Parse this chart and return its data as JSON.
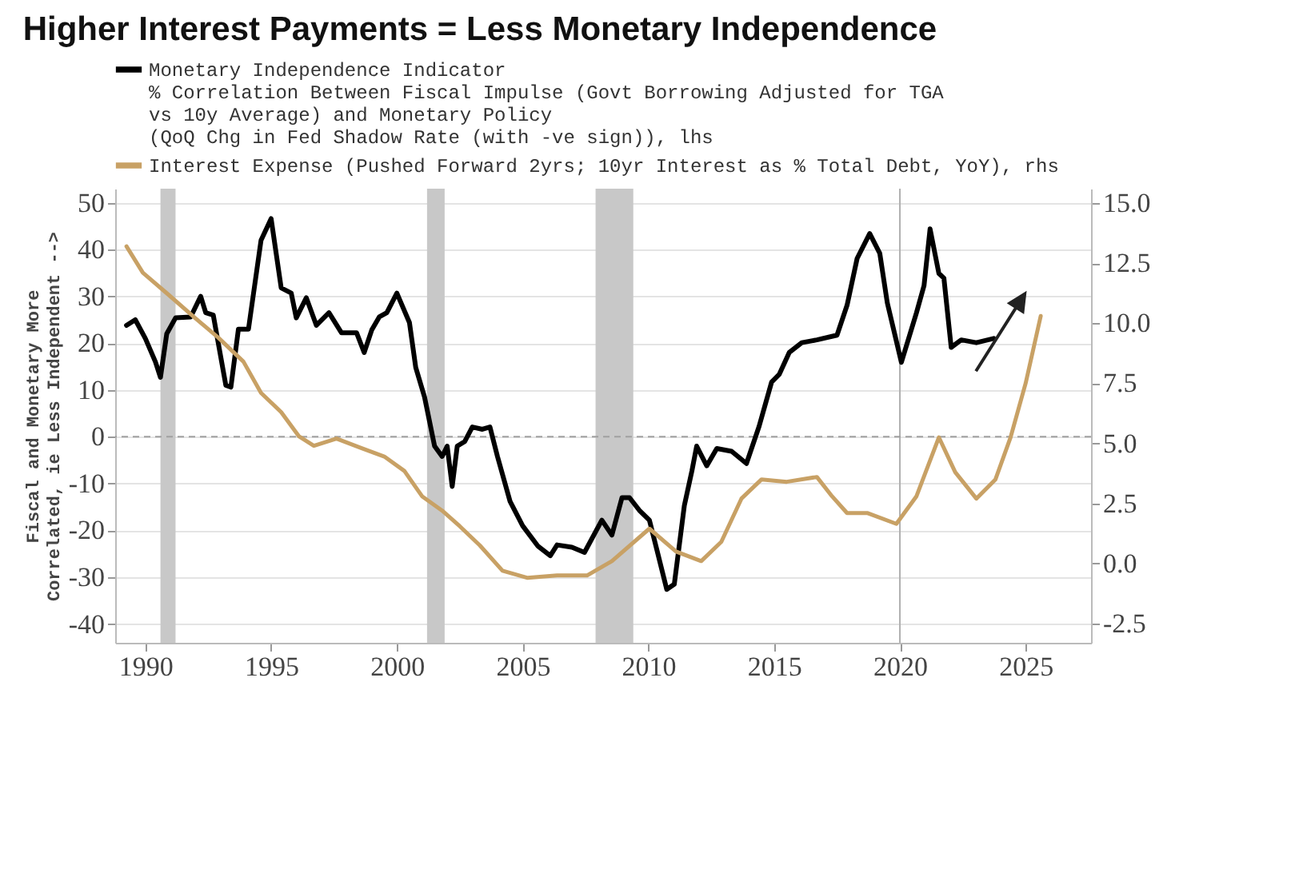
{
  "chart_data": {
    "type": "line",
    "title": "Higher Interest Payments = Less Monetary Independence",
    "ylabel": "Fiscal and Monetary More\nCorrelated, ie Less Independent -->",
    "xlim": [
      1988.8,
      2027.6
    ],
    "xticks": [
      1990,
      1995,
      2000,
      2005,
      2010,
      2015,
      2020,
      2025
    ],
    "ylim": [
      -44,
      53
    ],
    "yticks": [
      -40,
      -30,
      -20,
      -10,
      0,
      10,
      20,
      30,
      40,
      50
    ],
    "y2lim": [
      -3.3,
      15.6
    ],
    "y2ticks": [
      {
        "value": -2.5,
        "label": "-2.5"
      },
      {
        "value": 0,
        "label": "0.0"
      },
      {
        "value": 2.5,
        "label": "2.5"
      },
      {
        "value": 5,
        "label": "5.0"
      },
      {
        "value": 7.5,
        "label": "7.5"
      },
      {
        "value": 10,
        "label": "10.0"
      },
      {
        "value": 12.5,
        "label": "12.5"
      },
      {
        "value": 15,
        "label": "15.0"
      }
    ],
    "grid": "y",
    "legend": "top",
    "line_style": "solid",
    "marker": "none",
    "ref_lines": [
      {
        "axis": "x",
        "value": 2020,
        "color": "#b0b0b0",
        "line_style": "solid"
      },
      {
        "axis": "y",
        "value": 0,
        "color": "#a0a0a0",
        "line_style": "dashed"
      }
    ],
    "bands": [
      {
        "axis": "x",
        "from": 1990.6,
        "to": 1991.2,
        "color": "#c8c8c8"
      },
      {
        "axis": "x",
        "from": 2001.2,
        "to": 2001.9,
        "color": "#c8c8c8"
      },
      {
        "axis": "x",
        "from": 2007.9,
        "to": 2009.4,
        "color": "#c8c8c8"
      }
    ],
    "series": [
      {
        "name": "Monetary Independence Indicator\n% Correlation Between Fiscal Impulse (Govt Borrowing Adjusted for TGA\nvs 10y Average) and Monetary Policy\n(QoQ Chg in Fed Shadow Rate (with -ve sign)), lhs",
        "color": "#000000",
        "x": [
          1989.25,
          1989.6,
          1990,
          1990.4,
          1990.6,
          1990.85,
          1991.2,
          1991.8,
          1992.2,
          1992.4,
          1992.7,
          1993.2,
          1993.4,
          1993.7,
          1994.1,
          1994.6,
          1995,
          1995.4,
          1995.8,
          1996,
          1996.4,
          1996.8,
          1997.3,
          1997.8,
          1998.4,
          1998.7,
          1999,
          1999.3,
          1999.6,
          2000,
          2000.5,
          2000.75,
          2001.1,
          2001.5,
          2001.8,
          2002,
          2002.2,
          2002.4,
          2002.7,
          2003,
          2003.4,
          2003.7,
          2004,
          2004.5,
          2005,
          2005.6,
          2006.1,
          2006.37,
          2006.96,
          2007.46,
          2008.15,
          2008.55,
          2008.95,
          2009.25,
          2009.64,
          2010.04,
          2010.34,
          2010.73,
          2011.03,
          2011.43,
          2011.73,
          2011.92,
          2012.32,
          2012.72,
          2013.31,
          2013.9,
          2014.4,
          2014.9,
          2015.2,
          2015.6,
          2016.1,
          2016.7,
          2017.5,
          2017.9,
          2018.3,
          2018.8,
          2019.2,
          2019.5,
          2020.06,
          2020.66,
          2020.96,
          2021.2,
          2021.55,
          2021.75,
          2022.04,
          2022.44,
          2023.04,
          2023.73
        ],
        "values": [
          23.8,
          25,
          21,
          16,
          12.7,
          22,
          25.4,
          25.6,
          30,
          26.5,
          26,
          11,
          10.6,
          23,
          23,
          42,
          46.6,
          31.8,
          30.7,
          25.4,
          29.7,
          23.8,
          26.5,
          22.2,
          22.2,
          18,
          22.8,
          25.6,
          26.5,
          30.7,
          24.4,
          14.8,
          8.5,
          -2,
          -4.2,
          -2,
          -10.6,
          -2,
          -1,
          2.1,
          1.6,
          2.1,
          -4.2,
          -13.8,
          -19,
          -23.3,
          -25.4,
          -23.1,
          -23.6,
          -24.7,
          -17.8,
          -21,
          -13,
          -13,
          -15.7,
          -17.8,
          -24.2,
          -32.6,
          -31.5,
          -14.7,
          -7.3,
          -2,
          -6.2,
          -2.5,
          -3.1,
          -5.7,
          2.2,
          11.7,
          13.3,
          18,
          20.1,
          20.7,
          21.7,
          28.1,
          38.1,
          43.4,
          39.2,
          28.6,
          15.9,
          26.5,
          32.3,
          44.4,
          34.9,
          33.9,
          19.1,
          20.7,
          20.1,
          21
        ]
      },
      {
        "name": "Interest Expense (Pushed Forward 2yrs; 10yr Interest as % Total Debt, YoY), rhs",
        "color": "#c8a165",
        "axis": "y2",
        "x": [
          1989.25,
          1989.9,
          1990.85,
          1992,
          1992.9,
          1993.9,
          1994.6,
          1995.4,
          1996.1,
          1996.7,
          1997.6,
          1998.6,
          1999.5,
          2000.3,
          2001,
          2001.8,
          2002.5,
          2003.3,
          2004.2,
          2005.2,
          2006.37,
          2007.56,
          2008.55,
          2010.04,
          2011.1,
          2012.1,
          2012.9,
          2013.7,
          2014.5,
          2015.5,
          2016.7,
          2017.3,
          2017.9,
          2018.7,
          2019.86,
          2020.66,
          2021.55,
          2022.2,
          2023.04,
          2023.8,
          2024.4,
          2025,
          2025.6
        ],
        "values": [
          13.2,
          12.1,
          11.25,
          10.2,
          9.4,
          8.4,
          7.1,
          6.3,
          5.3,
          4.9,
          5.2,
          4.8,
          4.45,
          3.85,
          2.8,
          2.2,
          1.55,
          0.75,
          -0.3,
          -0.6,
          -0.5,
          -0.5,
          0.1,
          1.45,
          0.5,
          0.1,
          0.9,
          2.7,
          3.5,
          3.4,
          3.6,
          2.8,
          2.1,
          2.1,
          1.65,
          2.8,
          5.25,
          3.8,
          2.7,
          3.5,
          5.25,
          7.5,
          10.3
        ]
      }
    ]
  }
}
